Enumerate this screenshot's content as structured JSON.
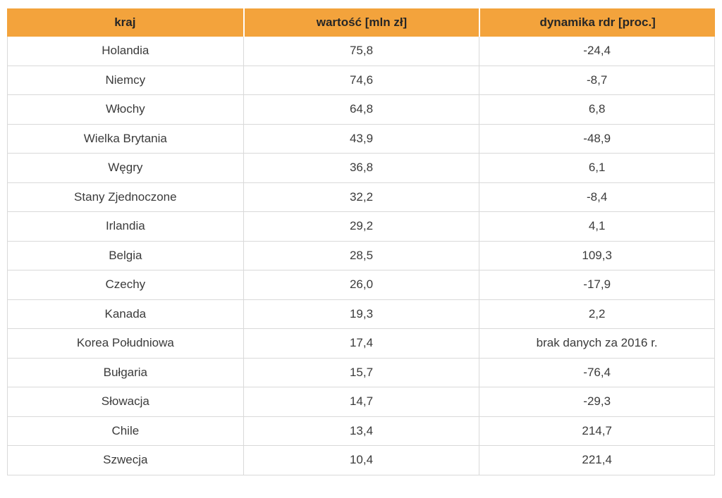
{
  "table": {
    "headers": [
      "kraj",
      "wartość [mln zł]",
      "dynamika rdr [proc.]"
    ],
    "rows": [
      [
        "Holandia",
        "75,8",
        "-24,4"
      ],
      [
        "Niemcy",
        "74,6",
        "-8,7"
      ],
      [
        "Włochy",
        "64,8",
        "6,8"
      ],
      [
        "Wielka Brytania",
        "43,9",
        "-48,9"
      ],
      [
        "Węgry",
        "36,8",
        "6,1"
      ],
      [
        "Stany Zjednoczone",
        "32,2",
        "-8,4"
      ],
      [
        "Irlandia",
        "29,2",
        "4,1"
      ],
      [
        "Belgia",
        "28,5",
        "109,3"
      ],
      [
        "Czechy",
        "26,0",
        "-17,9"
      ],
      [
        "Kanada",
        "19,3",
        "2,2"
      ],
      [
        "Korea Południowa",
        "17,4",
        "brak danych za 2016 r."
      ],
      [
        "Bułgaria",
        "15,7",
        "-76,4"
      ],
      [
        "Słowacja",
        "14,7",
        "-29,3"
      ],
      [
        "Chile",
        "13,4",
        "214,7"
      ],
      [
        "Szwecja",
        "10,4",
        "221,4"
      ]
    ]
  },
  "colors": {
    "header_bg": "#F3A33C",
    "row_border": "#D9D9D9",
    "body_text": "#3B3B3B",
    "header_text": "#262626"
  },
  "chart_data": {
    "type": "table",
    "columns": [
      "kraj",
      "wartość [mln zł]",
      "dynamika rdr [proc.]"
    ],
    "rows": [
      {
        "kraj": "Holandia",
        "wartosc_mln_zl": 75.8,
        "dynamika_rdr_proc": -24.4
      },
      {
        "kraj": "Niemcy",
        "wartosc_mln_zl": 74.6,
        "dynamika_rdr_proc": -8.7
      },
      {
        "kraj": "Włochy",
        "wartosc_mln_zl": 64.8,
        "dynamika_rdr_proc": 6.8
      },
      {
        "kraj": "Wielka Brytania",
        "wartosc_mln_zl": 43.9,
        "dynamika_rdr_proc": -48.9
      },
      {
        "kraj": "Węgry",
        "wartosc_mln_zl": 36.8,
        "dynamika_rdr_proc": 6.1
      },
      {
        "kraj": "Stany Zjednoczone",
        "wartosc_mln_zl": 32.2,
        "dynamika_rdr_proc": -8.4
      },
      {
        "kraj": "Irlandia",
        "wartosc_mln_zl": 29.2,
        "dynamika_rdr_proc": 4.1
      },
      {
        "kraj": "Belgia",
        "wartosc_mln_zl": 28.5,
        "dynamika_rdr_proc": 109.3
      },
      {
        "kraj": "Czechy",
        "wartosc_mln_zl": 26.0,
        "dynamika_rdr_proc": -17.9
      },
      {
        "kraj": "Kanada",
        "wartosc_mln_zl": 19.3,
        "dynamika_rdr_proc": 2.2
      },
      {
        "kraj": "Korea Południowa",
        "wartosc_mln_zl": 17.4,
        "dynamika_rdr_proc": "brak danych za 2016 r."
      },
      {
        "kraj": "Bułgaria",
        "wartosc_mln_zl": 15.7,
        "dynamika_rdr_proc": -76.4
      },
      {
        "kraj": "Słowacja",
        "wartosc_mln_zl": 14.7,
        "dynamika_rdr_proc": -29.3
      },
      {
        "kraj": "Chile",
        "wartosc_mln_zl": 13.4,
        "dynamika_rdr_proc": 214.7
      },
      {
        "kraj": "Szwecja",
        "wartosc_mln_zl": 10.4,
        "dynamika_rdr_proc": 221.4
      }
    ]
  }
}
